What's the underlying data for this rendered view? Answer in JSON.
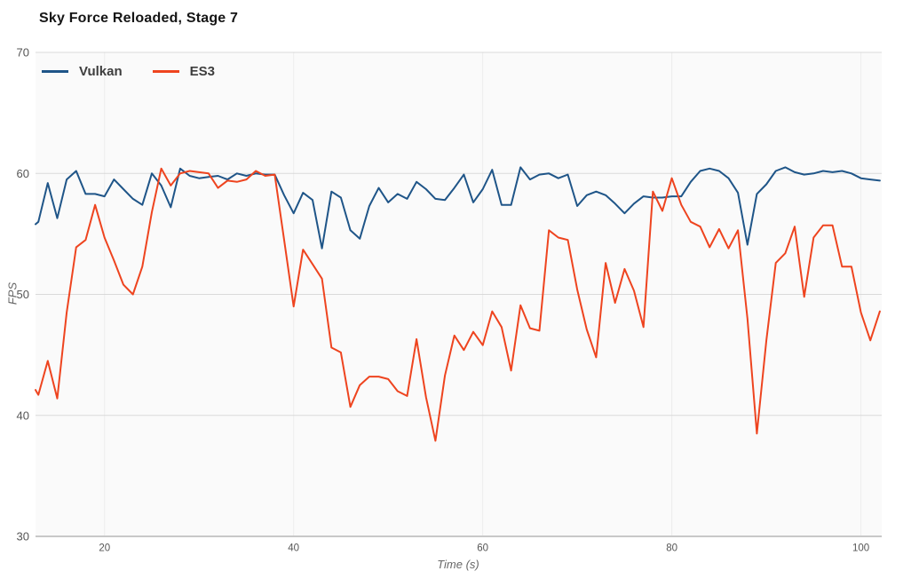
{
  "chart": {
    "title": "Sky Force Reloaded, Stage 7",
    "page_background": "#ffffff",
    "plot_background": "#fafafa",
    "grid_color_h": "#d9d9d9",
    "grid_color_v": "#ededed",
    "axis_line_color": "#c8c8c8",
    "tick_label_color": "#555555"
  },
  "chart_data": {
    "type": "line",
    "title": "Sky Force Reloaded, Stage 7",
    "xlabel": "Time (s)",
    "ylabel": "FPS",
    "xlim": [
      12.7,
      102.2
    ],
    "ylim": [
      30,
      70
    ],
    "x_ticks": [
      20,
      40,
      60,
      80,
      100
    ],
    "y_ticks": [
      30,
      40,
      50,
      60,
      70
    ],
    "grid": true,
    "legend_position": "top-left",
    "x": [
      12.7,
      13,
      14,
      15,
      16,
      17,
      18,
      19,
      20,
      21,
      22,
      23,
      24,
      25,
      26,
      27,
      28,
      29,
      30,
      31,
      32,
      33,
      34,
      35,
      36,
      37,
      38,
      39,
      40,
      41,
      42,
      43,
      44,
      45,
      46,
      47,
      48,
      49,
      50,
      51,
      52,
      53,
      54,
      55,
      56,
      57,
      58,
      59,
      60,
      61,
      62,
      63,
      64,
      65,
      66,
      67,
      68,
      69,
      70,
      71,
      72,
      73,
      74,
      75,
      76,
      77,
      78,
      79,
      80,
      81,
      82,
      83,
      84,
      85,
      86,
      87,
      88,
      89,
      90,
      91,
      92,
      93,
      94,
      95,
      96,
      97,
      98,
      99,
      100,
      101,
      102
    ],
    "series": [
      {
        "name": "Vulkan",
        "color": "#1f5588",
        "values": [
          55.8,
          56.0,
          59.2,
          56.3,
          59.5,
          60.2,
          58.3,
          58.3,
          58.1,
          59.5,
          58.7,
          57.9,
          57.4,
          60.0,
          59.0,
          57.2,
          60.4,
          59.8,
          59.6,
          59.7,
          59.8,
          59.5,
          60.0,
          59.8,
          60.0,
          59.9,
          59.9,
          58.2,
          56.7,
          58.4,
          57.8,
          53.8,
          58.5,
          58.0,
          55.3,
          54.6,
          57.3,
          58.8,
          57.6,
          58.3,
          57.9,
          59.3,
          58.7,
          57.9,
          57.8,
          58.8,
          59.9,
          57.6,
          58.7,
          60.3,
          57.4,
          57.4,
          60.5,
          59.5,
          59.9,
          60.0,
          59.6,
          59.9,
          57.3,
          58.2,
          58.5,
          58.2,
          57.5,
          56.7,
          57.5,
          58.1,
          58.0,
          58.0,
          58.1,
          58.1,
          59.3,
          60.2,
          60.4,
          60.2,
          59.6,
          58.4,
          54.1,
          58.3,
          59.1,
          60.2,
          60.5,
          60.1,
          59.9,
          60.0,
          60.2,
          60.1,
          60.2,
          60.0,
          59.6,
          59.5,
          59.4
        ]
      },
      {
        "name": "ES3",
        "color": "#ee441f",
        "values": [
          42.1,
          41.7,
          44.5,
          41.4,
          48.5,
          53.9,
          54.5,
          57.4,
          54.7,
          52.8,
          50.8,
          50.0,
          52.3,
          56.8,
          60.4,
          59.0,
          60.0,
          60.2,
          60.1,
          60.0,
          58.8,
          59.4,
          59.3,
          59.5,
          60.2,
          59.8,
          59.9,
          54.5,
          49.0,
          53.7,
          52.5,
          51.3,
          45.6,
          45.2,
          40.7,
          42.5,
          43.2,
          43.2,
          43.0,
          42.0,
          41.6,
          46.3,
          41.5,
          37.9,
          43.3,
          46.6,
          45.4,
          46.9,
          45.8,
          48.6,
          47.3,
          43.7,
          49.1,
          47.2,
          47.0,
          55.3,
          54.7,
          54.5,
          50.4,
          47.1,
          44.8,
          52.6,
          49.3,
          52.1,
          50.3,
          47.3,
          58.5,
          56.9,
          59.6,
          57.4,
          56.0,
          55.6,
          53.9,
          55.4,
          53.8,
          55.3,
          48.0,
          38.5,
          46.2,
          52.6,
          53.4,
          55.6,
          49.8,
          54.7,
          55.7,
          55.7,
          52.3,
          52.3,
          48.5,
          46.2,
          48.6
        ]
      }
    ]
  }
}
